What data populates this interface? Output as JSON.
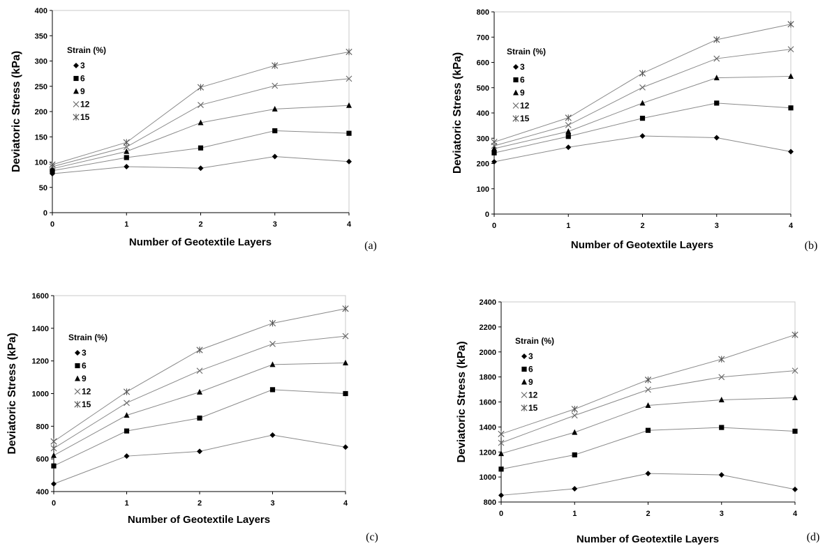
{
  "chart_data": [
    {
      "type": "line",
      "panel_label": "(a)",
      "xlabel": "Number of Geotextile Layers",
      "ylabel": "Deviatoric Stress (kPa)",
      "xlim": [
        0,
        4
      ],
      "ylim": [
        0,
        400
      ],
      "x_ticks": [
        "0",
        "1",
        "2",
        "3",
        "4"
      ],
      "y_ticks": [
        "0",
        "50",
        "100",
        "150",
        "200",
        "250",
        "300",
        "350",
        "400"
      ],
      "legend_title": "Strain (%)",
      "legend_position": "upper-left",
      "grid": false,
      "x": [
        0,
        1,
        2,
        3,
        4
      ],
      "series": [
        {
          "name": "3",
          "marker": "diamond",
          "values": [
            77,
            91,
            88,
            111,
            101
          ]
        },
        {
          "name": "6",
          "marker": "square",
          "values": [
            83,
            109,
            128,
            162,
            157
          ]
        },
        {
          "name": "9",
          "marker": "triangle",
          "values": [
            87,
            121,
            178,
            205,
            212
          ]
        },
        {
          "name": "12",
          "marker": "x",
          "values": [
            91,
            130,
            213,
            251,
            265
          ]
        },
        {
          "name": "15",
          "marker": "star",
          "values": [
            95,
            139,
            248,
            291,
            318
          ]
        }
      ]
    },
    {
      "type": "line",
      "panel_label": "(b)",
      "xlabel": "Number of Geotextile Layers",
      "ylabel": "Deviatoric Stress (kPa)",
      "xlim": [
        0,
        4
      ],
      "ylim": [
        0,
        800
      ],
      "x_ticks": [
        "0",
        "1",
        "2",
        "3",
        "4"
      ],
      "y_ticks": [
        "0",
        "100",
        "200",
        "300",
        "400",
        "500",
        "600",
        "700",
        "800"
      ],
      "legend_title": "Strain (%)",
      "legend_position": "upper-left",
      "grid": false,
      "x": [
        0,
        1,
        2,
        3,
        4
      ],
      "series": [
        {
          "name": "3",
          "marker": "diamond",
          "values": [
            207,
            264,
            309,
            302,
            247
          ]
        },
        {
          "name": "6",
          "marker": "square",
          "values": [
            242,
            307,
            379,
            439,
            420
          ]
        },
        {
          "name": "9",
          "marker": "triangle",
          "values": [
            259,
            327,
            439,
            539,
            545
          ]
        },
        {
          "name": "12",
          "marker": "x",
          "values": [
            270,
            352,
            501,
            615,
            652
          ]
        },
        {
          "name": "15",
          "marker": "star",
          "values": [
            285,
            381,
            557,
            690,
            751
          ]
        }
      ]
    },
    {
      "type": "line",
      "panel_label": "(c)",
      "xlabel": "Number of Geotextile Layers",
      "ylabel": "Deviatoric Stress (kPa)",
      "xlim": [
        0,
        4
      ],
      "ylim": [
        400,
        1600
      ],
      "x_ticks": [
        "0",
        "1",
        "2",
        "3",
        "4"
      ],
      "y_ticks": [
        "400",
        "600",
        "800",
        "1000",
        "1200",
        "1400",
        "1600"
      ],
      "legend_title": "Strain (%)",
      "legend_position": "upper-left",
      "grid": false,
      "x": [
        0,
        1,
        2,
        3,
        4
      ],
      "series": [
        {
          "name": "3",
          "marker": "diamond",
          "values": [
            447,
            617,
            646,
            746,
            672
          ]
        },
        {
          "name": "6",
          "marker": "square",
          "values": [
            557,
            771,
            850,
            1024,
            1000
          ]
        },
        {
          "name": "9",
          "marker": "triangle",
          "values": [
            621,
            867,
            1009,
            1178,
            1188
          ]
        },
        {
          "name": "12",
          "marker": "x",
          "values": [
            665,
            943,
            1140,
            1304,
            1352
          ]
        },
        {
          "name": "15",
          "marker": "star",
          "values": [
            707,
            1011,
            1267,
            1431,
            1520
          ]
        }
      ]
    },
    {
      "type": "line",
      "panel_label": "(d)",
      "xlabel": "Number of Geotextile Layers",
      "ylabel": "Deviatoric Stress (kPa)",
      "xlim": [
        0,
        4
      ],
      "ylim": [
        800,
        2400
      ],
      "x_ticks": [
        "0",
        "1",
        "2",
        "3",
        "4"
      ],
      "y_ticks": [
        "800",
        "1000",
        "1200",
        "1400",
        "1600",
        "1800",
        "2000",
        "2200",
        "2400"
      ],
      "legend_title": "Strain (%)",
      "legend_position": "upper-left",
      "grid": false,
      "x": [
        0,
        1,
        2,
        3,
        4
      ],
      "series": [
        {
          "name": "3",
          "marker": "diamond",
          "values": [
            854,
            906,
            1028,
            1017,
            901
          ]
        },
        {
          "name": "6",
          "marker": "square",
          "values": [
            1063,
            1177,
            1373,
            1396,
            1366
          ]
        },
        {
          "name": "9",
          "marker": "triangle",
          "values": [
            1187,
            1357,
            1572,
            1617,
            1634
          ]
        },
        {
          "name": "12",
          "marker": "x",
          "values": [
            1273,
            1492,
            1698,
            1799,
            1850
          ]
        },
        {
          "name": "15",
          "marker": "star",
          "values": [
            1344,
            1543,
            1777,
            1942,
            2137
          ]
        }
      ]
    }
  ]
}
